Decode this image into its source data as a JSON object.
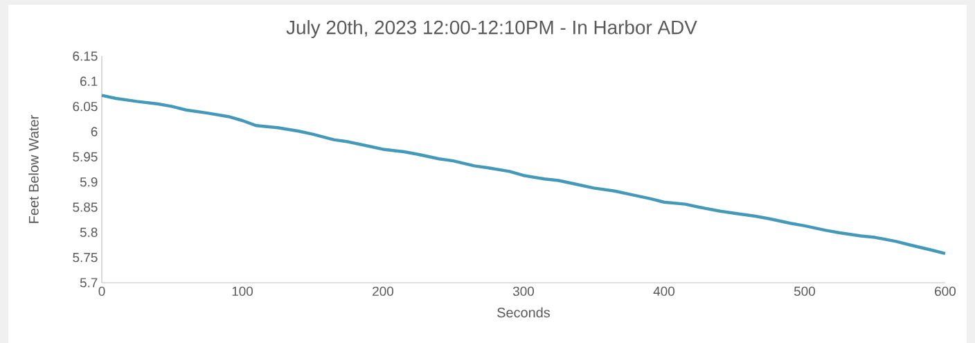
{
  "chart_data": {
    "type": "line",
    "title": "July 20th, 2023 12:00-12:10PM - In Harbor ADV",
    "xlabel": "Seconds",
    "ylabel": "Feet Below Water",
    "series": [
      {
        "color": "#4499b8",
        "x": [
          0,
          10,
          25,
          40,
          50,
          60,
          75,
          90,
          100,
          110,
          125,
          140,
          150,
          165,
          175,
          190,
          200,
          215,
          225,
          240,
          250,
          265,
          275,
          290,
          300,
          315,
          325,
          340,
          350,
          365,
          375,
          390,
          400,
          415,
          425,
          440,
          450,
          465,
          475,
          490,
          500,
          515,
          525,
          540,
          550,
          565,
          575,
          590,
          600
        ],
        "values": [
          6.072,
          6.066,
          6.06,
          6.055,
          6.05,
          6.043,
          6.037,
          6.03,
          6.022,
          6.012,
          6.008,
          6.001,
          5.995,
          5.984,
          5.98,
          5.971,
          5.965,
          5.96,
          5.955,
          5.946,
          5.942,
          5.932,
          5.928,
          5.921,
          5.913,
          5.906,
          5.903,
          5.894,
          5.888,
          5.882,
          5.876,
          5.867,
          5.86,
          5.856,
          5.85,
          5.842,
          5.838,
          5.832,
          5.827,
          5.818,
          5.813,
          5.804,
          5.799,
          5.793,
          5.79,
          5.782,
          5.775,
          5.765,
          5.758
        ]
      }
    ],
    "xlim": [
      0,
      600
    ],
    "ylim": [
      5.7,
      6.15
    ],
    "xticks": [
      0,
      100,
      200,
      300,
      400,
      500,
      600
    ],
    "yticks": [
      5.7,
      5.75,
      5.8,
      5.85,
      5.9,
      5.95,
      6,
      6.05,
      6.1,
      6.15
    ],
    "grid": false,
    "marker": "none",
    "line_style": "solid"
  }
}
